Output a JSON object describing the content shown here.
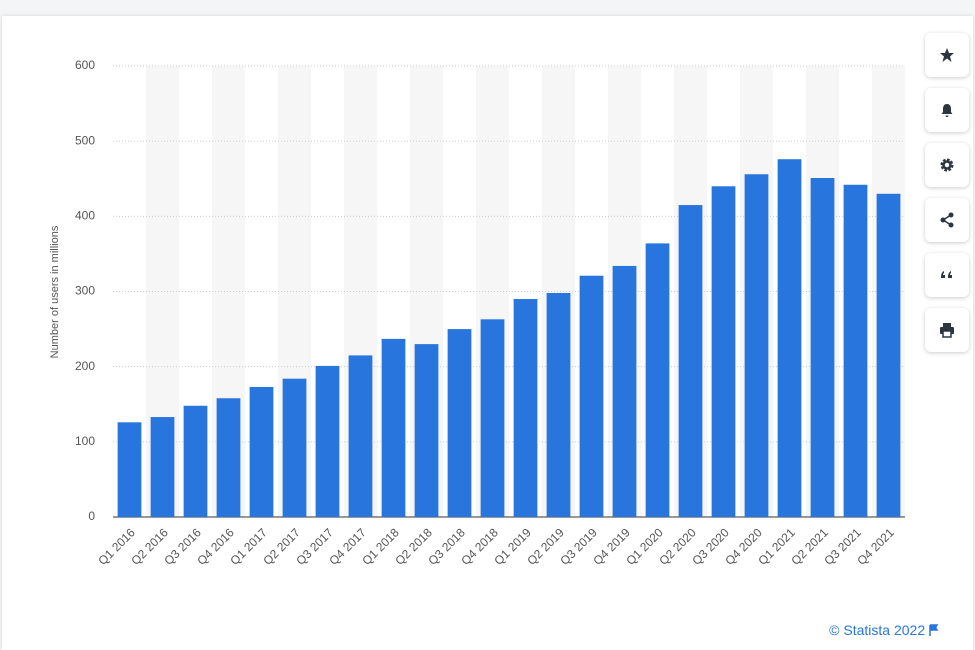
{
  "chart_data": {
    "type": "bar",
    "y_label": "Number of users in millions",
    "categories": [
      "Q1 2016",
      "Q2 2016",
      "Q3 2016",
      "Q4 2016",
      "Q1 2017",
      "Q2 2017",
      "Q3 2017",
      "Q4 2017",
      "Q1 2018",
      "Q2 2018",
      "Q3 2018",
      "Q4 2018",
      "Q1 2019",
      "Q2 2019",
      "Q3 2019",
      "Q4 2019",
      "Q1 2020",
      "Q2 2020",
      "Q3 2020",
      "Q4 2020",
      "Q1 2021",
      "Q2 2021",
      "Q3 2021",
      "Q4 2021"
    ],
    "values": [
      126,
      133,
      148,
      158,
      173,
      184,
      201,
      215,
      237,
      230,
      250,
      263,
      290,
      298,
      321,
      334,
      364,
      415,
      440,
      456,
      476,
      451,
      442,
      430
    ],
    "color": "#2876dd",
    "ylim": [
      0,
      600
    ],
    "yticks": [
      0,
      100,
      200,
      300,
      400,
      500,
      600
    ],
    "grid": true
  },
  "footer": {
    "credit": "© Statista 2022"
  }
}
